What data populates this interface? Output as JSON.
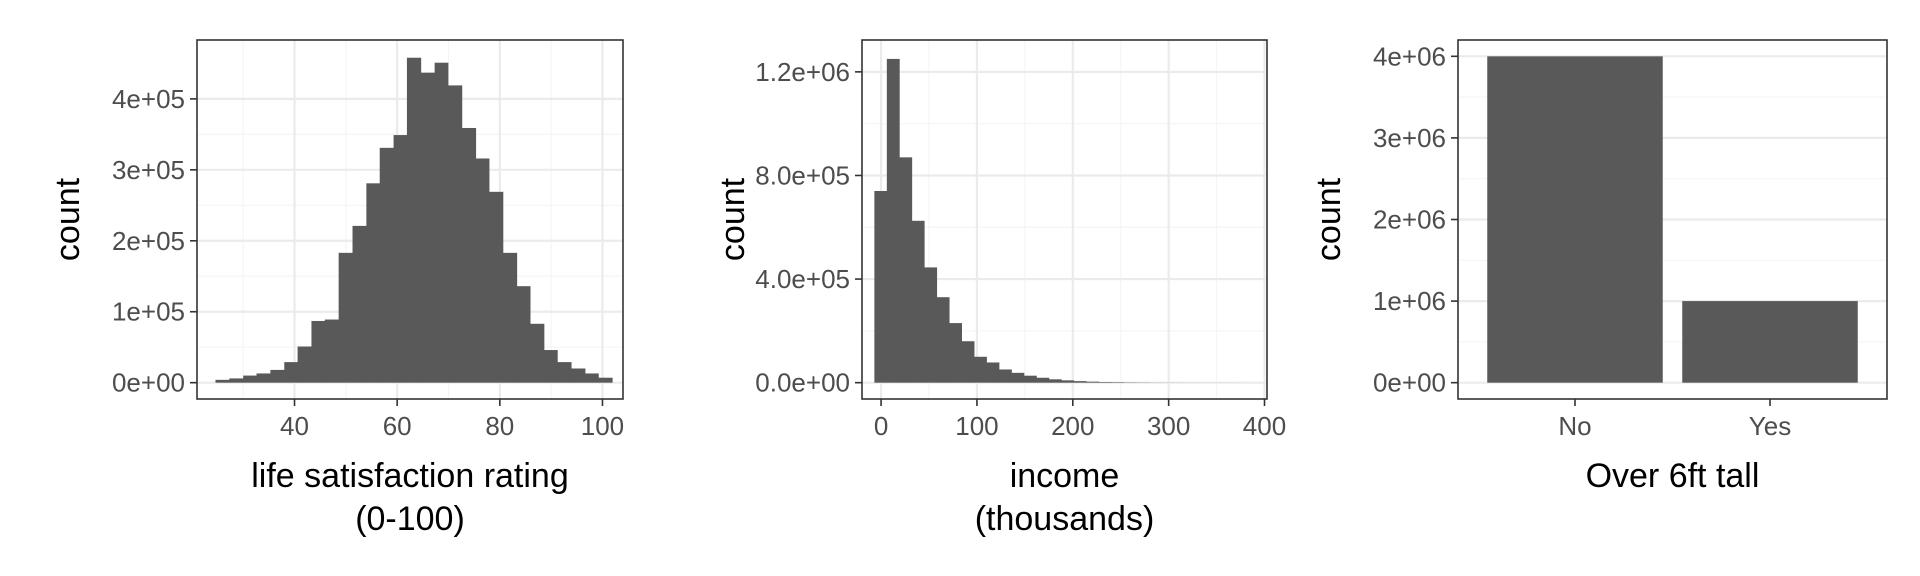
{
  "chart_data": [
    {
      "type": "bar",
      "subtype": "histogram",
      "xlabel": [
        "life satisfaction rating",
        "(0-100)"
      ],
      "ylabel": "count",
      "xlim": [
        21,
        104
      ],
      "ylim": [
        -23000,
        483000
      ],
      "x_ticks": [
        {
          "value": 40,
          "label": "40"
        },
        {
          "value": 60,
          "label": "60"
        },
        {
          "value": 80,
          "label": "80"
        },
        {
          "value": 100,
          "label": "100"
        }
      ],
      "y_ticks": [
        {
          "value": 0,
          "label": "0e+00"
        },
        {
          "value": 100000,
          "label": "1e+05"
        },
        {
          "value": 200000,
          "label": "2e+05"
        },
        {
          "value": 300000,
          "label": "3e+05"
        },
        {
          "value": 400000,
          "label": "4e+05"
        }
      ],
      "bins": [
        {
          "x0": 24.6,
          "x1": 27.3,
          "value": 4000
        },
        {
          "x0": 27.3,
          "x1": 30.0,
          "value": 6000
        },
        {
          "x0": 30.0,
          "x1": 32.6,
          "value": 10000
        },
        {
          "x0": 32.6,
          "x1": 35.3,
          "value": 13000
        },
        {
          "x0": 35.3,
          "x1": 38.0,
          "value": 18000
        },
        {
          "x0": 38.0,
          "x1": 40.6,
          "value": 29000
        },
        {
          "x0": 40.6,
          "x1": 43.3,
          "value": 51000
        },
        {
          "x0": 43.3,
          "x1": 45.9,
          "value": 87000
        },
        {
          "x0": 45.9,
          "x1": 48.6,
          "value": 89000
        },
        {
          "x0": 48.6,
          "x1": 51.3,
          "value": 183000
        },
        {
          "x0": 51.3,
          "x1": 54.0,
          "value": 221000
        },
        {
          "x0": 54.0,
          "x1": 56.6,
          "value": 281000
        },
        {
          "x0": 56.6,
          "x1": 59.3,
          "value": 331000
        },
        {
          "x0": 59.3,
          "x1": 61.9,
          "value": 349000
        },
        {
          "x0": 61.9,
          "x1": 64.6,
          "value": 458000
        },
        {
          "x0": 64.6,
          "x1": 67.3,
          "value": 437000
        },
        {
          "x0": 67.3,
          "x1": 69.9,
          "value": 451000
        },
        {
          "x0": 69.9,
          "x1": 72.6,
          "value": 419000
        },
        {
          "x0": 72.6,
          "x1": 75.3,
          "value": 359000
        },
        {
          "x0": 75.3,
          "x1": 77.9,
          "value": 316000
        },
        {
          "x0": 77.9,
          "x1": 80.6,
          "value": 269000
        },
        {
          "x0": 80.6,
          "x1": 83.3,
          "value": 183000
        },
        {
          "x0": 83.3,
          "x1": 85.9,
          "value": 136000
        },
        {
          "x0": 85.9,
          "x1": 88.6,
          "value": 83000
        },
        {
          "x0": 88.6,
          "x1": 91.2,
          "value": 46000
        },
        {
          "x0": 91.2,
          "x1": 93.9,
          "value": 29000
        },
        {
          "x0": 93.9,
          "x1": 96.6,
          "value": 20000
        },
        {
          "x0": 96.6,
          "x1": 99.2,
          "value": 13000
        },
        {
          "x0": 99.2,
          "x1": 101.9,
          "value": 7000
        }
      ]
    },
    {
      "type": "bar",
      "subtype": "histogram",
      "xlabel": [
        "income",
        "(thousands)"
      ],
      "ylabel": "count",
      "xlim": [
        -19.9,
        402.6
      ],
      "ylim": [
        -63000,
        1323000
      ],
      "x_ticks": [
        {
          "value": 0,
          "label": "0"
        },
        {
          "value": 100,
          "label": "100"
        },
        {
          "value": 200,
          "label": "200"
        },
        {
          "value": 300,
          "label": "300"
        },
        {
          "value": 400,
          "label": "400"
        }
      ],
      "y_ticks": [
        {
          "value": 0,
          "label": "0.0e+00"
        },
        {
          "value": 400000,
          "label": "4.0e+05"
        },
        {
          "value": 800000,
          "label": "8.0e+05"
        },
        {
          "value": 1200000,
          "label": "1.2e+06"
        }
      ],
      "bins": [
        {
          "x0": -7,
          "x1": 6,
          "value": 740000
        },
        {
          "x0": 6,
          "x1": 19,
          "value": 1250000
        },
        {
          "x0": 19,
          "x1": 32,
          "value": 870000
        },
        {
          "x0": 32,
          "x1": 45,
          "value": 625000
        },
        {
          "x0": 45,
          "x1": 58,
          "value": 445000
        },
        {
          "x0": 58,
          "x1": 71,
          "value": 330000
        },
        {
          "x0": 71,
          "x1": 84,
          "value": 230000
        },
        {
          "x0": 84,
          "x1": 97,
          "value": 160000
        },
        {
          "x0": 97,
          "x1": 110,
          "value": 100000
        },
        {
          "x0": 110,
          "x1": 123,
          "value": 78000
        },
        {
          "x0": 123,
          "x1": 136,
          "value": 51000
        },
        {
          "x0": 136,
          "x1": 149,
          "value": 38000
        },
        {
          "x0": 149,
          "x1": 162,
          "value": 27000
        },
        {
          "x0": 162,
          "x1": 175,
          "value": 19000
        },
        {
          "x0": 175,
          "x1": 188,
          "value": 13000
        },
        {
          "x0": 188,
          "x1": 201,
          "value": 9000
        },
        {
          "x0": 201,
          "x1": 214,
          "value": 6000
        },
        {
          "x0": 214,
          "x1": 227,
          "value": 4000
        },
        {
          "x0": 227,
          "x1": 240,
          "value": 2500
        },
        {
          "x0": 240,
          "x1": 253,
          "value": 2000
        },
        {
          "x0": 253,
          "x1": 266,
          "value": 1200
        },
        {
          "x0": 266,
          "x1": 279,
          "value": 800
        },
        {
          "x0": 279,
          "x1": 292,
          "value": 500
        },
        {
          "x0": 292,
          "x1": 305,
          "value": 400
        },
        {
          "x0": 305,
          "x1": 318,
          "value": 300
        },
        {
          "x0": 318,
          "x1": 331,
          "value": 200
        },
        {
          "x0": 331,
          "x1": 344,
          "value": 150
        },
        {
          "x0": 344,
          "x1": 357,
          "value": 100
        },
        {
          "x0": 357,
          "x1": 370,
          "value": 80
        },
        {
          "x0": 370,
          "x1": 383,
          "value": 50
        }
      ]
    },
    {
      "type": "bar",
      "xlabel": [
        "Over 6ft tall"
      ],
      "ylabel": "count",
      "categories": [
        "No",
        "Yes"
      ],
      "values": [
        4000000,
        1000000
      ],
      "ylim": [
        -200000,
        4200000
      ],
      "y_ticks": [
        {
          "value": 0,
          "label": "0e+00"
        },
        {
          "value": 1000000,
          "label": "1e+06"
        },
        {
          "value": 2000000,
          "label": "2e+06"
        },
        {
          "value": 3000000,
          "label": "3e+06"
        },
        {
          "value": 4000000,
          "label": "4e+06"
        }
      ]
    }
  ],
  "colors": {
    "bar": "#595959",
    "grid_major": "#ebebeb",
    "grid_minor": "#f5f5f5",
    "panel_border": "#333333",
    "tick_label": "#4d4d4d",
    "axis_title": "#000000"
  }
}
